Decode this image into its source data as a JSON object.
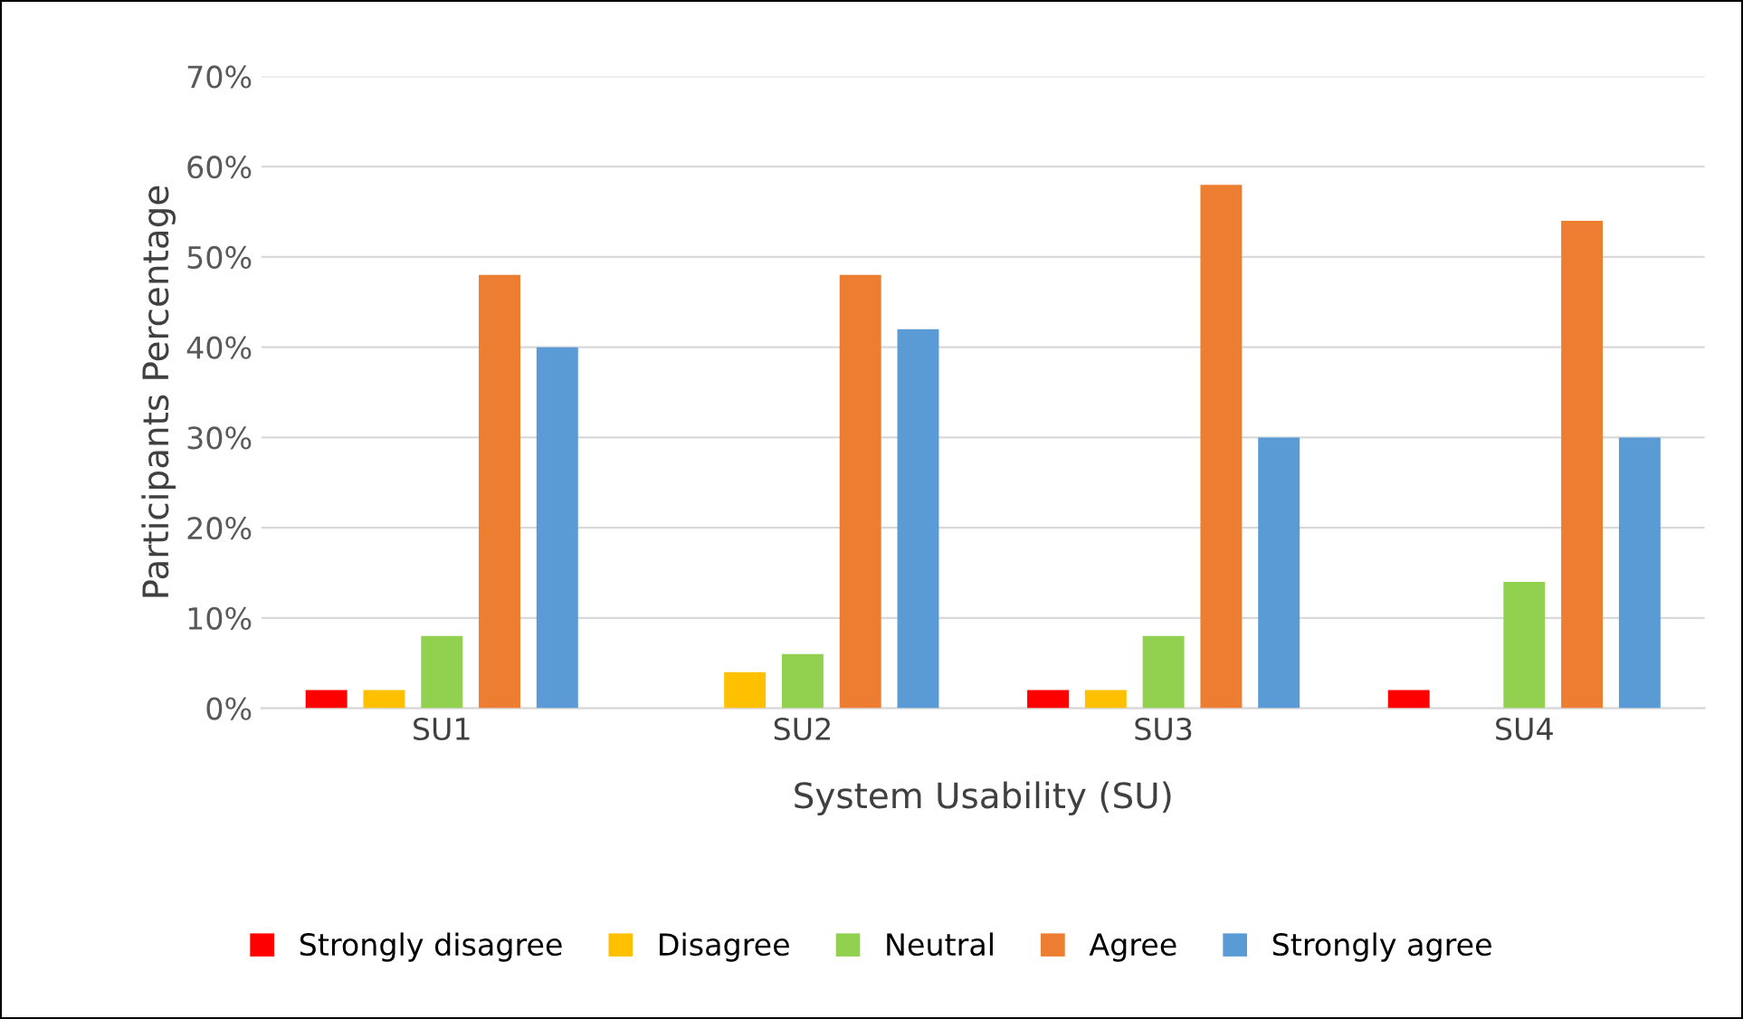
{
  "chart_data": {
    "type": "bar",
    "xlabel": "System Usability (SU)",
    "ylabel": "Participants Percentage",
    "categories": [
      "SU1",
      "SU2",
      "SU3",
      "SU4"
    ],
    "series": [
      {
        "name": "Strongly disagree",
        "color": "#ff0000",
        "values": [
          2,
          0,
          2,
          2
        ]
      },
      {
        "name": "Disagree",
        "color": "#ffc000",
        "values": [
          2,
          4,
          2,
          0
        ]
      },
      {
        "name": "Neutral",
        "color": "#92d050",
        "values": [
          8,
          6,
          8,
          14
        ]
      },
      {
        "name": "Agree",
        "color": "#ed7d31",
        "values": [
          48,
          48,
          58,
          54
        ]
      },
      {
        "name": "Strongly agree",
        "color": "#5b9bd5",
        "values": [
          40,
          42,
          30,
          30
        ]
      }
    ],
    "ylim": [
      0,
      70
    ],
    "yticks": [
      {
        "value": 0,
        "label": "0%"
      },
      {
        "value": 10,
        "label": "10%"
      },
      {
        "value": 20,
        "label": "20%"
      },
      {
        "value": 30,
        "label": "30%"
      },
      {
        "value": 40,
        "label": "40%"
      },
      {
        "value": 50,
        "label": "50%"
      },
      {
        "value": 60,
        "label": "60%"
      },
      {
        "value": 70,
        "label": "70%"
      }
    ],
    "grid": "y",
    "legend": "bottom"
  }
}
